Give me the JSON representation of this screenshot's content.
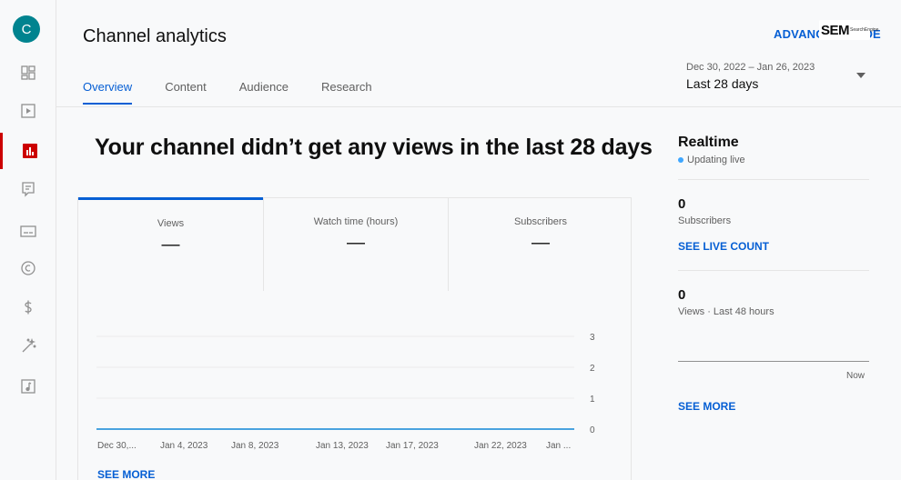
{
  "sidebar": {
    "avatar_letter": "C",
    "items": [
      {
        "icon": "dashboard-icon"
      },
      {
        "icon": "content-icon"
      },
      {
        "icon": "analytics-icon",
        "active": true
      },
      {
        "icon": "comments-icon"
      },
      {
        "icon": "subtitles-icon"
      },
      {
        "icon": "copyright-icon"
      },
      {
        "icon": "earn-icon"
      },
      {
        "icon": "customization-icon"
      },
      {
        "icon": "audio-library-icon"
      }
    ]
  },
  "header": {
    "title": "Channel analytics",
    "advanced_mode": "ADVANCED MODE",
    "logo": {
      "big": "SEM",
      "small": "SearchEngine"
    }
  },
  "tabs": [
    {
      "label": "Overview",
      "active": true
    },
    {
      "label": "Content"
    },
    {
      "label": "Audience"
    },
    {
      "label": "Research"
    }
  ],
  "date_picker": {
    "range": "Dec 30, 2022 – Jan 26, 2023",
    "label": "Last 28 days"
  },
  "headline": "Your channel didn’t get any views in the last 28 days",
  "stats": [
    {
      "label": "Views",
      "value": "—"
    },
    {
      "label": "Watch time (hours)",
      "value": "—"
    },
    {
      "label": "Subscribers",
      "value": "—"
    }
  ],
  "chart_data": {
    "type": "line",
    "x": [
      "Dec 30,...",
      "Jan 4, 2023",
      "Jan 8, 2023",
      "Jan 13, 2023",
      "Jan 17, 2023",
      "Jan 22, 2023",
      "Jan ..."
    ],
    "series": [
      {
        "values": [
          0,
          0,
          0,
          0,
          0,
          0,
          0
        ]
      }
    ],
    "y_ticks": [
      "3",
      "2",
      "1",
      "0"
    ],
    "ylim": [
      0,
      3
    ],
    "line_color": "#4aa3df"
  },
  "see_more_left": "SEE MORE",
  "realtime": {
    "title": "Realtime",
    "status": "Updating live",
    "subscribers_value": "0",
    "subscribers_label": "Subscribers",
    "live_count_link": "SEE LIVE COUNT",
    "views_value": "0",
    "views_label": "Views · Last 48 hours",
    "now_label": "Now",
    "see_more": "SEE MORE"
  }
}
